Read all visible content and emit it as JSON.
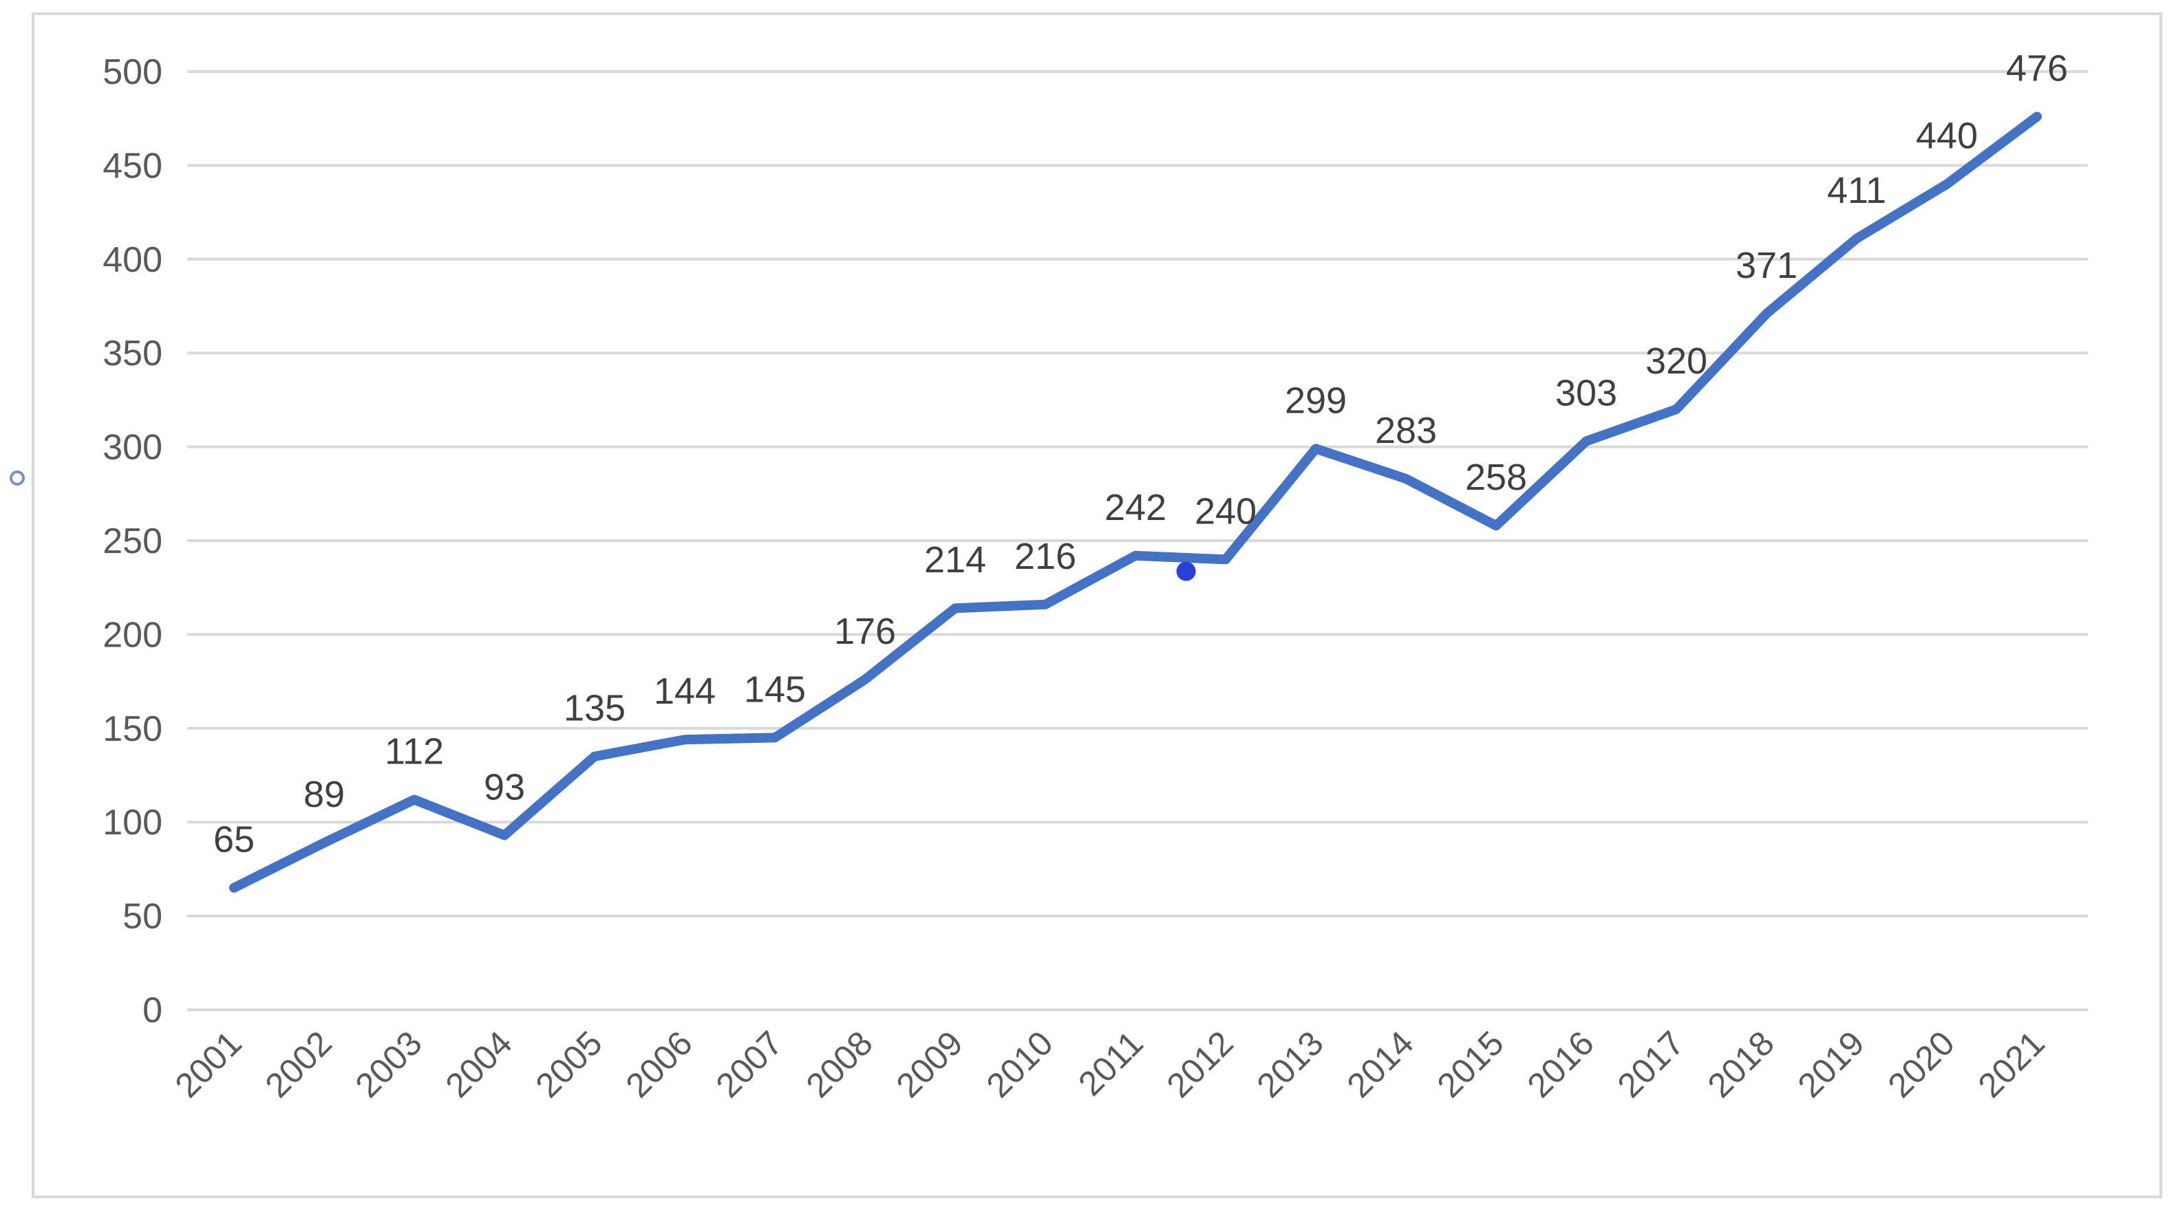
{
  "chart_data": {
    "type": "line",
    "title": "",
    "xlabel": "",
    "ylabel": "",
    "categories": [
      "2001",
      "2002",
      "2003",
      "2004",
      "2005",
      "2006",
      "2007",
      "2008",
      "2009",
      "2010",
      "2011",
      "2012",
      "2013",
      "2014",
      "2015",
      "2016",
      "2017",
      "2018",
      "2019",
      "2020",
      "2021"
    ],
    "series": [
      {
        "values": [
          65,
          89,
          112,
          93,
          135,
          144,
          145,
          176,
          214,
          216,
          242,
          240,
          299,
          283,
          258,
          303,
          320,
          371,
          411,
          440,
          476
        ]
      }
    ],
    "ylim": [
      0,
      500
    ],
    "yticks": [
      0,
      50,
      100,
      150,
      200,
      250,
      300,
      350,
      400,
      450,
      500
    ],
    "grid": "horizontal",
    "legend": "none",
    "data_labels": true,
    "colors": {
      "series": "#4472c4",
      "grid": "#d9d9d9",
      "tick_text": "#595959",
      "label_text": "#404040",
      "marker": "#2a3fd6"
    }
  }
}
